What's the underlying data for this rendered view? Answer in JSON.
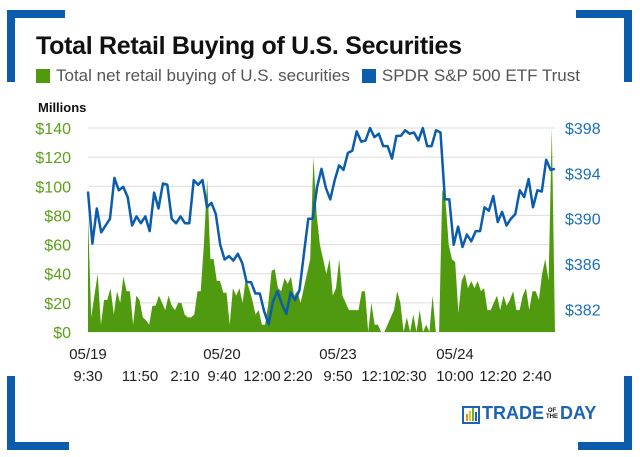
{
  "chart_data": {
    "type": "area+line",
    "title": "Total Retail Buying of U.S. Securities",
    "ylabel_left": "Millions",
    "legend_position": "top",
    "grid": true,
    "left_axis": {
      "ylim": [
        0,
        140
      ],
      "ticks": [
        "$0",
        "$20",
        "$40",
        "$60",
        "$80",
        "$100",
        "$120",
        "$140"
      ]
    },
    "right_axis": {
      "ylim": [
        380,
        398
      ],
      "ticks": [
        {
          "v": 382,
          "label": "$382"
        },
        {
          "v": 386,
          "label": "$386"
        },
        {
          "v": 390,
          "label": "$390"
        },
        {
          "v": 394,
          "label": "$394"
        },
        {
          "v": 398,
          "label": "$398"
        }
      ]
    },
    "x_ticks": [
      {
        "date": "05/19",
        "time": "9:30"
      },
      {
        "date": "",
        "time": "11:50"
      },
      {
        "date": "",
        "time": "2:10"
      },
      {
        "date": "05/20",
        "time": "9:40"
      },
      {
        "date": "",
        "time": "12:00"
      },
      {
        "date": "",
        "time": "2:20"
      },
      {
        "date": "05/23",
        "time": "9:50"
      },
      {
        "date": "",
        "time": "12:10"
      },
      {
        "date": "",
        "time": "2:30"
      },
      {
        "date": "05/24",
        "time": "10:00"
      },
      {
        "date": "",
        "time": "12:20"
      },
      {
        "date": "",
        "time": "2:40"
      }
    ],
    "series": [
      {
        "name": "Total net retail buying of U.S. securities",
        "type": "area",
        "axis": "left",
        "color": "#4f9a0e",
        "values": [
          80,
          10,
          25,
          40,
          5,
          22,
          22,
          30,
          12,
          28,
          20,
          38,
          28,
          28,
          5,
          25,
          22,
          10,
          8,
          5,
          18,
          18,
          25,
          20,
          15,
          25,
          18,
          15,
          20,
          20,
          12,
          10,
          10,
          12,
          28,
          28,
          60,
          105,
          50,
          50,
          35,
          35,
          27,
          27,
          5,
          30,
          25,
          30,
          20,
          37,
          30,
          22,
          12,
          15,
          5,
          5,
          20,
          42,
          43,
          30,
          28,
          37,
          33,
          38,
          25,
          28,
          20,
          30,
          40,
          50,
          120,
          80,
          60,
          50,
          40,
          50,
          25,
          30,
          50,
          25,
          20,
          15,
          15,
          15,
          15,
          28,
          28,
          0,
          20,
          5,
          5,
          0,
          0,
          5,
          10,
          15,
          28,
          20,
          0,
          10,
          0,
          12,
          0,
          15,
          0,
          5,
          0,
          25,
          0,
          0,
          98,
          90,
          60,
          50,
          48,
          13,
          35,
          40,
          30,
          35,
          30,
          35,
          28,
          30,
          15,
          15,
          20,
          25,
          15,
          25,
          18,
          22,
          28,
          15,
          15,
          25,
          30,
          15,
          28,
          28,
          22,
          40,
          50,
          35,
          140,
          0
        ]
      },
      {
        "name": "SPDR S&P 500 ETF Trust",
        "type": "line",
        "axis": "right",
        "color": "#0b5cad",
        "values": [
          392.4,
          387.8,
          390.9,
          388.8,
          389.4,
          390.0,
          393.6,
          392.5,
          392.8,
          391.9,
          389.4,
          390.2,
          389.6,
          390.2,
          388.9,
          392.3,
          390.9,
          393.1,
          393.0,
          390.0,
          389.6,
          390.2,
          389.6,
          389.6,
          393.4,
          393.0,
          393.4,
          391.0,
          391.4,
          390.4,
          387.7,
          386.4,
          386.7,
          386.3,
          386.9,
          386.1,
          384.4,
          384.4,
          383.4,
          383.4,
          381.8,
          380.7,
          382.7,
          383.6,
          382.5,
          381.6,
          383.5,
          382.8,
          383.7,
          386.9,
          390.0,
          390.0,
          392.8,
          394.4,
          392.7,
          391.7,
          393.4,
          394.7,
          394.3,
          395.8,
          396.0,
          397.7,
          396.8,
          396.9,
          398.0,
          397.2,
          397.5,
          396.4,
          396.4,
          395.3,
          397.3,
          397.3,
          397.8,
          397.5,
          397.6,
          396.9,
          398.0,
          396.4,
          396.4,
          397.8,
          397.6,
          391.7,
          391.7,
          387.7,
          389.3,
          387.5,
          388.6,
          388.0,
          388.9,
          388.9,
          391.0,
          390.7,
          392.0,
          389.7,
          390.6,
          389.4,
          390.0,
          390.4,
          392.5,
          391.9,
          393.5,
          391.0,
          392.5,
          392.4,
          395.2,
          394.3,
          394.4
        ]
      }
    ]
  },
  "colors": {
    "frame": "#0b5cad",
    "left_axis": "#5aa01a",
    "right_axis": "#1a6ec0",
    "grid": "#dddddd"
  },
  "logo": {
    "text_left": "TRADE",
    "text_mid_top": "OF",
    "text_mid_bottom": "THE",
    "text_right": "DAY"
  }
}
